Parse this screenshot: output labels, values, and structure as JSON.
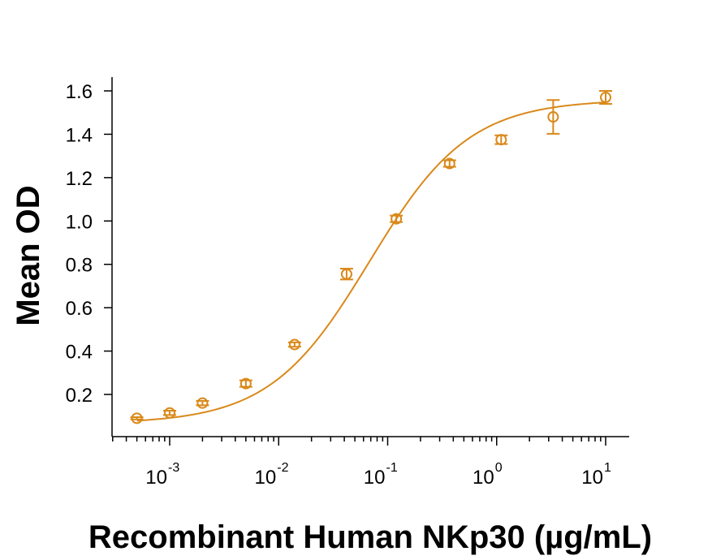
{
  "chart_data": {
    "type": "scatter",
    "title": "",
    "xlabel": "Recombinant Human NKp30 (µg/mL)",
    "ylabel": "Mean OD",
    "x_scale": "log",
    "xlim": [
      0.0003,
      16
    ],
    "ylim": [
      0.0,
      1.67
    ],
    "grid": false,
    "legend": "none",
    "color": "#D9891A",
    "y_ticks": [
      "0.2",
      "0.4",
      "0.6",
      "0.8",
      "1.0",
      "1.2",
      "1.4",
      "1.6"
    ],
    "x_ticks": [
      {
        "base": "10",
        "exp": "-3"
      },
      {
        "base": "10",
        "exp": "-2"
      },
      {
        "base": "10",
        "exp": "-1"
      },
      {
        "base": "10",
        "exp": "0"
      },
      {
        "base": "10",
        "exp": "1"
      }
    ],
    "series": [
      {
        "x": [
          0.0005,
          0.001,
          0.002,
          0.005,
          0.014,
          0.042,
          0.12,
          0.37,
          1.1,
          3.3,
          10
        ],
        "y": [
          0.09,
          0.115,
          0.16,
          0.25,
          0.43,
          0.755,
          1.01,
          1.265,
          1.375,
          1.48,
          1.57
        ],
        "err": [
          0.005,
          0.01,
          0.01,
          0.015,
          0.01,
          0.025,
          0.015,
          0.015,
          0.02,
          0.078,
          0.03
        ]
      }
    ],
    "fit": {
      "type": "4PL",
      "bottom": 0.065,
      "top": 1.56,
      "ec50": 0.068,
      "hill": 0.95
    }
  }
}
